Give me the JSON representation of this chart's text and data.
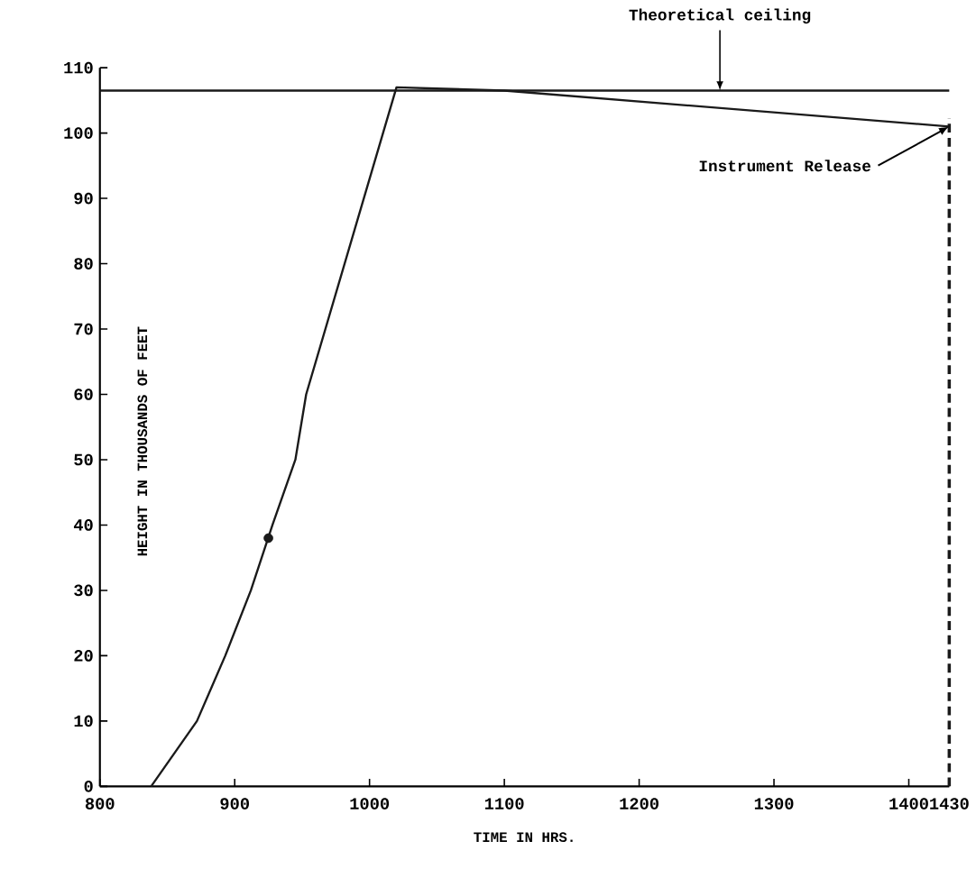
{
  "chart_data": {
    "type": "line",
    "xlabel": "TIME IN HRS.",
    "ylabel": "HEIGHT IN THOUSANDS OF FEET",
    "series": [
      {
        "color": "#1a1a1a",
        "x": [
          838,
          855,
          872,
          893,
          912,
          928,
          945,
          953,
          1020,
          1100,
          1430
        ],
        "values": [
          0,
          5,
          10,
          20,
          30,
          40,
          50,
          60,
          107,
          106.5,
          101
        ]
      },
      {
        "type": "scatter",
        "color": "#1a1a1a",
        "marker": "circle",
        "x": [
          925
        ],
        "values": [
          38
        ]
      }
    ],
    "xlim": [
      800,
      1430
    ],
    "ylim": [
      0,
      110
    ],
    "xticks": [
      800,
      900,
      1000,
      1100,
      1200,
      1300,
      1400,
      1430
    ],
    "yticks": [
      0,
      10,
      20,
      30,
      40,
      50,
      60,
      70,
      80,
      90,
      100,
      110
    ],
    "ref_lines": [
      {
        "axis": "y",
        "value": 106.5,
        "label": "Theoretical ceiling",
        "color": "#1a1a1a",
        "line_style": "solid"
      },
      {
        "axis": "x",
        "value": 1430,
        "color": "#1a1a1a",
        "line_style": "dashed"
      }
    ],
    "annotations": [
      {
        "text": "Instrument Release",
        "x": 1430,
        "y": 101
      }
    ],
    "grid": false,
    "marker": "none",
    "line_style": "solid"
  }
}
